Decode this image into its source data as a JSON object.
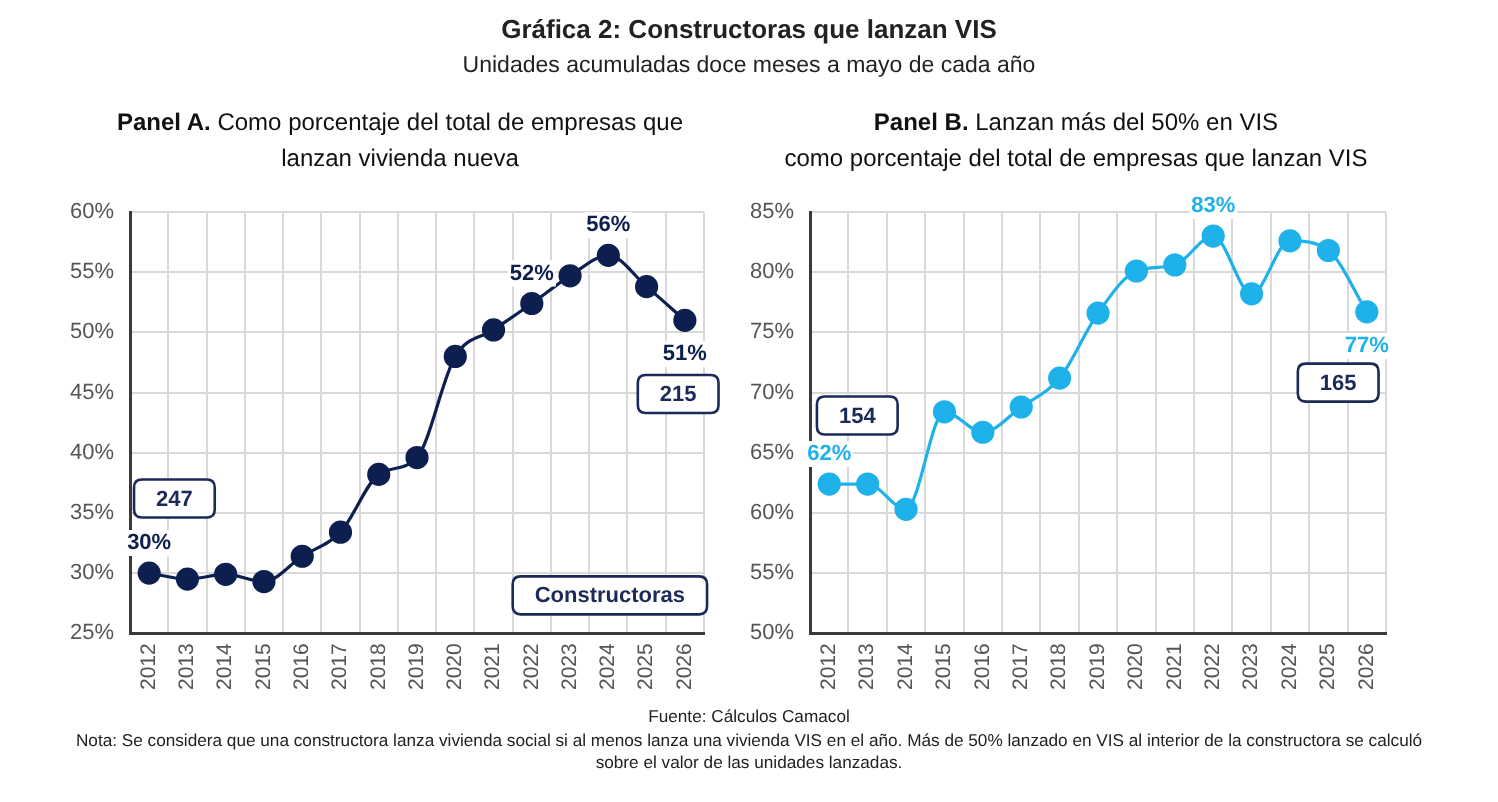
{
  "chart_data": [
    {
      "type": "other",
      "title": "Gráfica 2: Constructoras que lanzan VIS",
      "subtitle": "Unidades acumuladas doce meses a mayo de cada año"
    },
    {
      "type": "line",
      "title": "Panel A. Como porcentaje del total de empresas que lanzan vivienda nueva",
      "categories": [
        "2012",
        "2013",
        "2014",
        "2015",
        "2016",
        "2017",
        "2018",
        "2019",
        "2020",
        "2021",
        "2022",
        "2023",
        "2024",
        "2025",
        "2026"
      ],
      "values": [
        30.0,
        29.5,
        29.9,
        29.3,
        31.4,
        33.4,
        38.2,
        39.6,
        48.0,
        50.2,
        52.4,
        54.7,
        56.4,
        53.8,
        51.0
      ],
      "color": "#0c1f4f",
      "value_labels": [
        "30%",
        null,
        null,
        null,
        null,
        null,
        null,
        null,
        null,
        null,
        "52%",
        null,
        "56%",
        null,
        "51%"
      ],
      "ylim": [
        25,
        60
      ],
      "yticks": [
        {
          "value": 25,
          "label": "25%"
        },
        {
          "value": 30,
          "label": "30%"
        },
        {
          "value": 35,
          "label": "35%"
        },
        {
          "value": 40,
          "label": "40%"
        },
        {
          "value": 45,
          "label": "45%"
        },
        {
          "value": 50,
          "label": "50%"
        },
        {
          "value": 55,
          "label": "55%"
        },
        {
          "value": 60,
          "label": "60%"
        }
      ],
      "grid": true,
      "marker": "circle",
      "line_style": "solid",
      "annotations": [
        "247",
        "215",
        "Constructoras"
      ]
    },
    {
      "type": "line",
      "title": "Panel B. Lanzan más del 50% en VIS",
      "subtitle": "como porcentaje del total de empresas que lanzan VIS",
      "categories": [
        "2012",
        "2013",
        "2014",
        "2015",
        "2016",
        "2017",
        "2018",
        "2019",
        "2020",
        "2021",
        "2022",
        "2023",
        "2024",
        "2025",
        "2026"
      ],
      "values": [
        62.4,
        62.4,
        60.3,
        68.4,
        66.7,
        68.8,
        71.2,
        76.6,
        80.1,
        80.6,
        83.0,
        78.2,
        82.6,
        81.8,
        76.7
      ],
      "color": "#1eb1ea",
      "value_labels": [
        "62%",
        null,
        null,
        null,
        null,
        null,
        null,
        null,
        null,
        null,
        "83%",
        null,
        null,
        null,
        "77%"
      ],
      "ylim": [
        50,
        85
      ],
      "yticks": [
        {
          "value": 50,
          "label": "50%"
        },
        {
          "value": 55,
          "label": "55%"
        },
        {
          "value": 60,
          "label": "60%"
        },
        {
          "value": 65,
          "label": "65%"
        },
        {
          "value": 70,
          "label": "70%"
        },
        {
          "value": 75,
          "label": "75%"
        },
        {
          "value": 80,
          "label": "80%"
        },
        {
          "value": 85,
          "label": "85%"
        }
      ],
      "grid": true,
      "marker": "circle",
      "line_style": "solid",
      "annotations": [
        "154",
        "165"
      ]
    },
    {
      "type": "other",
      "annotations": [
        "Fuente: Cálculos Camacol",
        "Nota: Se considera que una constructora lanza vivienda social si al menos lanza una vivienda VIS en el año. Más de 50% lanzado en VIS al interior de la constructora se calculó sobre el valor de las unidades lanzadas."
      ]
    }
  ]
}
